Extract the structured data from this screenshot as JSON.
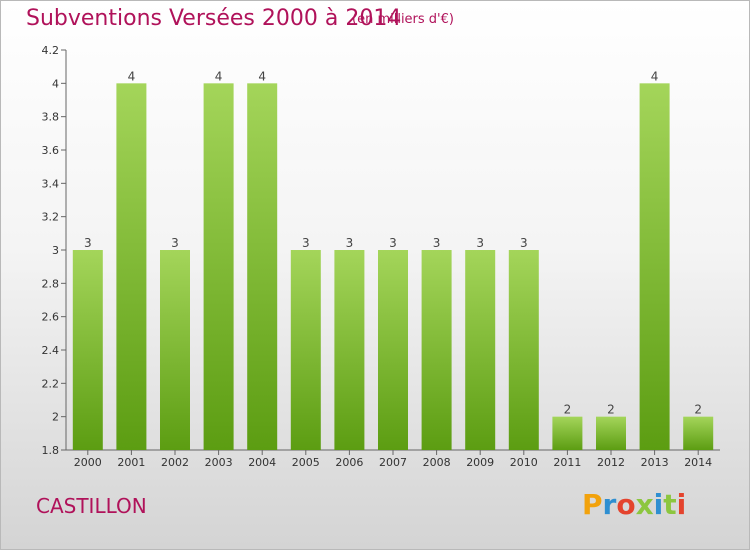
{
  "title": "Subventions Versées 2000 à 2014",
  "subtitle": "(en milliers d'€)",
  "commune": "CASTILLON",
  "logo": {
    "text": "Proxiti",
    "colors": [
      "#f2a20c",
      "#2f8fd1",
      "#e4432d",
      "#8cc63f",
      "#2f8fd1",
      "#8cc63f",
      "#e4432d"
    ]
  },
  "colors": {
    "bar_top": "#a4d55a",
    "bar_bottom": "#5c9d12",
    "title": "#b0125a"
  },
  "chart_data": {
    "type": "bar",
    "title": "Subventions Versées 2000 à 2014",
    "categories": [
      "2000",
      "2001",
      "2002",
      "2003",
      "2004",
      "2005",
      "2006",
      "2007",
      "2008",
      "2009",
      "2010",
      "2011",
      "2012",
      "2013",
      "2014"
    ],
    "values": [
      3,
      4,
      3,
      4,
      4,
      3,
      3,
      3,
      3,
      3,
      3,
      2,
      2,
      4,
      2
    ],
    "data_labels": [
      "3",
      "4",
      "3",
      "4",
      "4",
      "3",
      "3",
      "3",
      "3",
      "3",
      "3",
      "2",
      "2",
      "4",
      "2"
    ],
    "y_ticks": [
      "1.8",
      "2",
      "2.2",
      "2.4",
      "2.6",
      "2.8",
      "3",
      "3.2",
      "3.4",
      "3.6",
      "3.8",
      "4",
      "4.2"
    ],
    "ylim": [
      1.8,
      4.2
    ],
    "grid": false,
    "legend": "none"
  }
}
